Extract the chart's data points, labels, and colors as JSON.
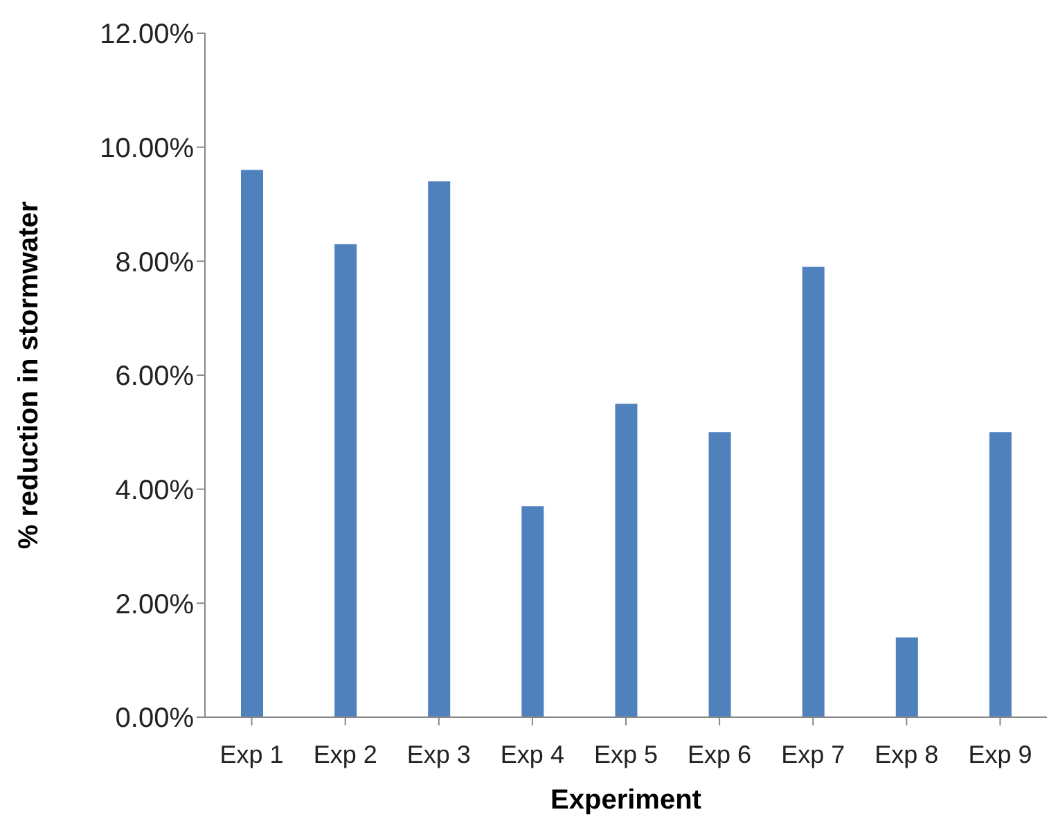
{
  "chart_data": {
    "type": "bar",
    "xlabel": "Experiment",
    "ylabel": "% reduction in stormwater",
    "categories": [
      "Exp 1",
      "Exp 2",
      "Exp 3",
      "Exp 4",
      "Exp 5",
      "Exp 6",
      "Exp 7",
      "Exp 8",
      "Exp 9"
    ],
    "values": [
      9.6,
      8.3,
      9.4,
      3.7,
      5.5,
      5.0,
      7.9,
      1.4,
      5.0
    ],
    "color": "#4f81bd",
    "ylim": [
      0,
      12
    ],
    "yticks": [
      {
        "value": 0,
        "label": "0.00%"
      },
      {
        "value": 2,
        "label": "2.00%"
      },
      {
        "value": 4,
        "label": "4.00%"
      },
      {
        "value": 6,
        "label": "6.00%"
      },
      {
        "value": 8,
        "label": "8.00%"
      },
      {
        "value": 10,
        "label": "10.00%"
      },
      {
        "value": 12,
        "label": "12.00%"
      }
    ],
    "grid": false,
    "legend": false
  }
}
